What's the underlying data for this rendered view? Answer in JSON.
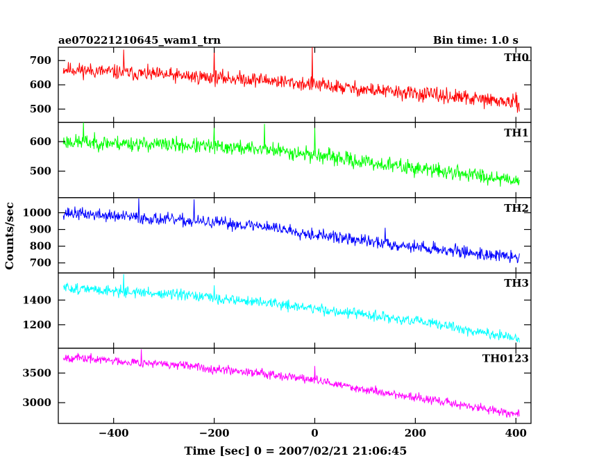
{
  "header": {
    "title": "ae070221210645_wam1_trn",
    "bin_time": "Bin time: 1.0 s"
  },
  "axes": {
    "xlabel": "Time [sec] 0 = 2007/02/21 21:06:45",
    "ylabel": "Counts/sec",
    "xlim": [
      -510,
      430
    ],
    "xticks": [
      -400,
      -200,
      0,
      200,
      400
    ],
    "xtick_labels": [
      "−400",
      "−200",
      "0",
      "200",
      "400"
    ]
  },
  "chart_data": {
    "type": "line",
    "title": "ae070221210645_wam1_trn",
    "xlabel": "Time [sec] 0 = 2007/02/21 21:06:45",
    "ylabel": "Counts/sec",
    "bin_time_s": 1.0,
    "x_range": [
      -500,
      407
    ],
    "grid": false,
    "legend": "none",
    "series": [
      {
        "name": "TH0",
        "color": "#ff0000",
        "ylim": [
          445,
          755
        ],
        "yticks": [
          500,
          600,
          700
        ],
        "trend": [
          [
            -500,
            665
          ],
          [
            -300,
            640
          ],
          [
            -100,
            620
          ],
          [
            0,
            600
          ],
          [
            100,
            580
          ],
          [
            250,
            555
          ],
          [
            407,
            525
          ]
        ],
        "noise_amplitude": 45,
        "spikes": [
          [
            -380,
            745
          ],
          [
            -200,
            750
          ],
          [
            -5,
            755
          ]
        ],
        "seed": 11
      },
      {
        "name": "TH1",
        "color": "#00ff00",
        "ylim": [
          410,
          665
        ],
        "yticks": [
          500,
          600
        ],
        "trend": [
          [
            -500,
            600
          ],
          [
            -300,
            590
          ],
          [
            -100,
            575
          ],
          [
            0,
            555
          ],
          [
            100,
            530
          ],
          [
            250,
            500
          ],
          [
            407,
            470
          ]
        ],
        "noise_amplitude": 38,
        "spikes": [
          [
            -460,
            665
          ],
          [
            -200,
            655
          ],
          [
            -100,
            660
          ],
          [
            0,
            650
          ]
        ],
        "seed": 23
      },
      {
        "name": "TH2",
        "color": "#0000ff",
        "ylim": [
          640,
          1090
        ],
        "yticks": [
          700,
          800,
          900,
          1000
        ],
        "trend": [
          [
            -500,
            1000
          ],
          [
            -300,
            960
          ],
          [
            -100,
            920
          ],
          [
            0,
            870
          ],
          [
            100,
            830
          ],
          [
            250,
            780
          ],
          [
            407,
            730
          ]
        ],
        "noise_amplitude": 55,
        "spikes": [
          [
            -350,
            1085
          ],
          [
            -240,
            1080
          ],
          [
            140,
            910
          ]
        ],
        "seed": 37
      },
      {
        "name": "TH3",
        "color": "#00ffff",
        "ylim": [
          1010,
          1620
        ],
        "yticks": [
          1200,
          1400
        ],
        "trend": [
          [
            -500,
            1500
          ],
          [
            -300,
            1450
          ],
          [
            -100,
            1380
          ],
          [
            0,
            1330
          ],
          [
            100,
            1280
          ],
          [
            250,
            1200
          ],
          [
            407,
            1080
          ]
        ],
        "noise_amplitude": 65,
        "spikes": [
          [
            -380,
            1610
          ],
          [
            -200,
            1520
          ]
        ],
        "seed": 51
      },
      {
        "name": "TH0123",
        "color": "#ff00ff",
        "ylim": [
          2650,
          3920
        ],
        "yticks": [
          3000,
          3500
        ],
        "trend": [
          [
            -500,
            3770
          ],
          [
            -300,
            3650
          ],
          [
            -100,
            3500
          ],
          [
            0,
            3380
          ],
          [
            100,
            3220
          ],
          [
            250,
            3020
          ],
          [
            407,
            2800
          ]
        ],
        "noise_amplitude": 110,
        "spikes": [
          [
            -345,
            3900
          ],
          [
            0,
            3620
          ]
        ],
        "seed": 67
      }
    ]
  }
}
